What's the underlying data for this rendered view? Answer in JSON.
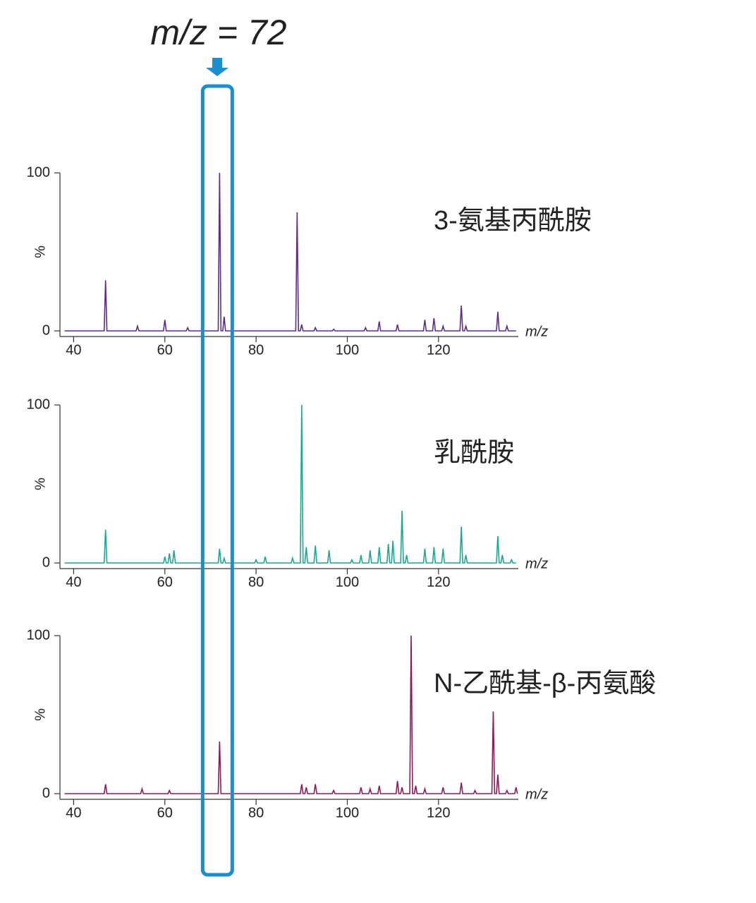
{
  "highlight": {
    "label": "m/z = 72",
    "value": 72
  },
  "chart_data": [
    {
      "type": "line",
      "title": "3-氨基丙酰胺",
      "color": "#5b2d86",
      "ylabel": "%",
      "xlabel": "m/z",
      "xlim": [
        37,
        137.5
      ],
      "xticks": [
        40,
        60,
        80,
        100,
        120
      ],
      "ylim": [
        0,
        100
      ],
      "yticks": [
        0,
        100
      ],
      "x": [
        38,
        46.7,
        47,
        47.3,
        53.7,
        54,
        54.3,
        59.7,
        60,
        60.3,
        64.7,
        65,
        65.3,
        71.7,
        72,
        72.3,
        72.7,
        73,
        73.3,
        88.7,
        89,
        89.3,
        89.7,
        90,
        90.3,
        92.7,
        93,
        93.3,
        96.7,
        97,
        97.3,
        103.7,
        104,
        104.3,
        106.7,
        107,
        107.3,
        110.7,
        111,
        111.3,
        116.7,
        117,
        117.3,
        118.7,
        119,
        119.3,
        120.7,
        121,
        121.3,
        124.7,
        125,
        125.3,
        125.7,
        126,
        126.3,
        132.7,
        133,
        133.3,
        134.7,
        135,
        135.3,
        137
      ],
      "values": [
        0,
        0,
        32,
        0,
        0,
        3,
        0,
        0,
        7,
        0,
        0,
        2,
        0,
        0,
        100,
        0,
        0,
        9,
        0,
        0,
        75,
        0,
        0,
        4,
        0,
        0,
        2,
        0,
        0,
        1,
        0,
        0,
        2,
        0,
        0,
        6,
        0,
        0,
        4,
        0,
        0,
        7,
        0,
        0,
        8,
        0,
        0,
        3,
        0,
        0,
        16,
        0,
        0,
        3,
        0,
        0,
        12,
        0,
        0,
        3,
        0,
        0
      ]
    },
    {
      "type": "line",
      "title": "乳酰胺",
      "color": "#1aa892",
      "ylabel": "%",
      "xlabel": "m/z",
      "xlim": [
        37,
        137.5
      ],
      "xticks": [
        40,
        60,
        80,
        100,
        120
      ],
      "ylim": [
        0,
        100
      ],
      "yticks": [
        0,
        100
      ],
      "x": [
        38,
        46.7,
        47,
        47.3,
        59.7,
        60,
        60.3,
        60.7,
        61,
        61.3,
        61.7,
        62,
        62.3,
        71.7,
        72,
        72.3,
        72.7,
        73,
        73.3,
        79.7,
        80,
        80.3,
        81.7,
        82,
        82.3,
        87.7,
        88,
        88.3,
        89.7,
        90,
        90.3,
        90.7,
        91,
        91.3,
        92.7,
        93,
        93.3,
        95.7,
        96,
        96.3,
        100.7,
        101,
        101.3,
        102.7,
        103,
        103.3,
        104.7,
        105,
        105.3,
        106.7,
        107,
        107.3,
        108.7,
        109,
        109.3,
        109.7,
        110,
        110.3,
        111.7,
        112,
        112.3,
        112.7,
        113,
        113.3,
        116.7,
        117,
        117.3,
        118.7,
        119,
        119.3,
        120.7,
        121,
        121.3,
        124.7,
        125,
        125.3,
        125.7,
        126,
        126.3,
        132.7,
        133,
        133.3,
        133.7,
        134,
        134.3,
        135.7,
        136,
        136.3,
        137
      ],
      "values": [
        0,
        0,
        21,
        0,
        0,
        4,
        0,
        0,
        6,
        0,
        0,
        8,
        0,
        0,
        9,
        0,
        0,
        3,
        0,
        0,
        2,
        0,
        0,
        4,
        0,
        0,
        3,
        0,
        0,
        100,
        0,
        0,
        10,
        0,
        0,
        11,
        0,
        0,
        8,
        0,
        0,
        2,
        0,
        0,
        5,
        0,
        0,
        8,
        0,
        0,
        10,
        0,
        0,
        12,
        0,
        0,
        14,
        0,
        0,
        33,
        0,
        0,
        5,
        0,
        0,
        9,
        0,
        0,
        10,
        0,
        0,
        9,
        0,
        0,
        23,
        0,
        0,
        5,
        0,
        0,
        17,
        0,
        0,
        5,
        0,
        0,
        2,
        0,
        0
      ]
    },
    {
      "type": "line",
      "title": "N-乙酰基-β-丙氨酸",
      "color": "#8b1a5a",
      "ylabel": "%",
      "xlabel": "m/z",
      "xlim": [
        37,
        137.5
      ],
      "xticks": [
        40,
        60,
        80,
        100,
        120
      ],
      "ylim": [
        0,
        100
      ],
      "yticks": [
        0,
        100
      ],
      "x": [
        38,
        46.7,
        47,
        47.3,
        54.7,
        55,
        55.3,
        60.7,
        61,
        61.3,
        71.7,
        72,
        72.3,
        89.7,
        90,
        90.3,
        90.7,
        91,
        91.3,
        92.7,
        93,
        93.3,
        96.7,
        97,
        97.3,
        102.7,
        103,
        103.3,
        104.7,
        105,
        105.3,
        106.7,
        107,
        107.3,
        110.7,
        111,
        111.3,
        111.7,
        112,
        112.3,
        113.7,
        114,
        114.3,
        114.7,
        115,
        115.3,
        116.7,
        117,
        117.3,
        120.7,
        121,
        121.3,
        124.7,
        125,
        125.3,
        127.7,
        128,
        128.3,
        131.7,
        132,
        132.3,
        132.7,
        133,
        133.3,
        134.7,
        135,
        135.3,
        136.7,
        137,
        137.3
      ],
      "values": [
        0,
        0,
        6,
        0,
        0,
        3,
        0,
        0,
        2,
        0,
        0,
        33,
        0,
        0,
        6,
        0,
        0,
        4,
        0,
        0,
        6,
        0,
        0,
        2,
        0,
        0,
        4,
        0,
        0,
        3,
        0,
        0,
        5,
        0,
        0,
        8,
        0,
        0,
        4,
        0,
        0,
        100,
        0,
        0,
        5,
        0,
        0,
        3,
        0,
        0,
        4,
        0,
        0,
        7,
        0,
        0,
        2,
        0,
        0,
        52,
        0,
        0,
        12,
        0,
        0,
        2,
        0,
        0,
        4,
        0
      ]
    }
  ]
}
